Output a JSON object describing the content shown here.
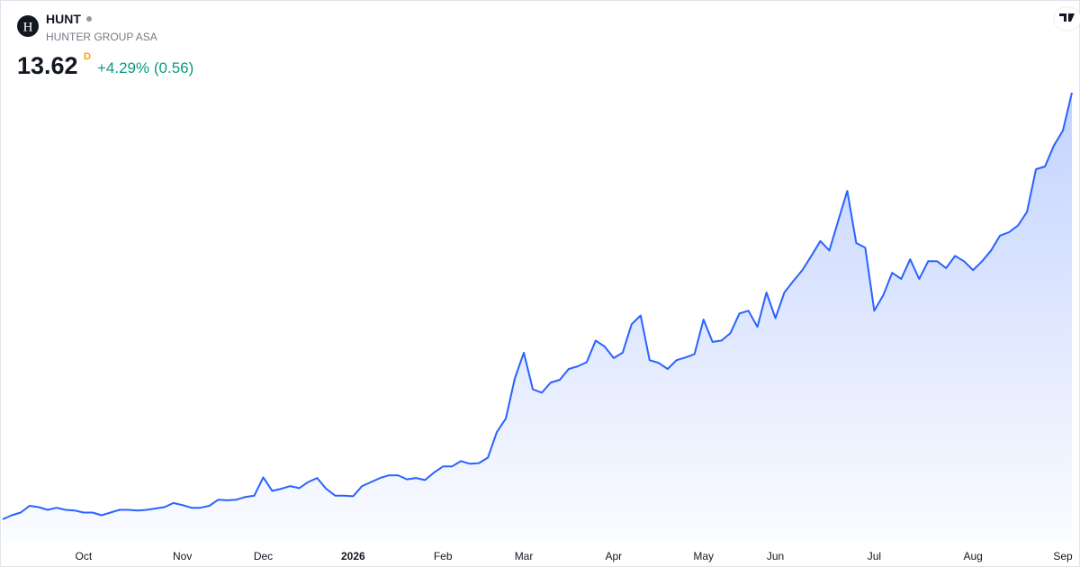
{
  "header": {
    "logo": "H",
    "symbol": "HUNT",
    "name": "HUNTER GROUP ASA",
    "price": "13.62",
    "interval": "D",
    "change": "+4.29% (0.56)"
  },
  "chart_data": {
    "type": "area",
    "color": "#2962ff",
    "categories": [
      null,
      null,
      null,
      null,
      null,
      null,
      null,
      null,
      null,
      "Oct",
      null,
      null,
      null,
      null,
      null,
      null,
      null,
      null,
      null,
      null,
      "Nov",
      null,
      null,
      null,
      null,
      null,
      null,
      null,
      null,
      "Dec",
      null,
      null,
      null,
      null,
      null,
      null,
      null,
      null,
      null,
      "2026",
      null,
      null,
      null,
      null,
      null,
      null,
      null,
      null,
      null,
      "Feb",
      null,
      null,
      null,
      null,
      null,
      null,
      null,
      null,
      "Mar",
      null,
      null,
      null,
      null,
      null,
      null,
      null,
      null,
      null,
      "Apr",
      null,
      null,
      null,
      null,
      null,
      null,
      null,
      null,
      null,
      "May",
      null,
      null,
      null,
      null,
      null,
      null,
      null,
      "Jun",
      null,
      null,
      null,
      null,
      null,
      null,
      null,
      null,
      null,
      null,
      "Jul",
      null,
      null,
      null,
      null,
      null,
      null,
      null,
      null,
      null,
      null,
      "Aug",
      null,
      null,
      null,
      null,
      null,
      null,
      null,
      null,
      null,
      "Sep",
      null
    ],
    "values": [
      7.32,
      7.38,
      7.42,
      7.52,
      7.5,
      7.46,
      7.49,
      7.46,
      7.45,
      7.42,
      7.42,
      7.38,
      7.42,
      7.46,
      7.46,
      7.45,
      7.46,
      7.48,
      7.5,
      7.56,
      7.53,
      7.49,
      7.49,
      7.52,
      7.61,
      7.6,
      7.61,
      7.65,
      7.67,
      7.94,
      7.74,
      7.77,
      7.81,
      7.78,
      7.87,
      7.93,
      7.77,
      7.67,
      7.67,
      7.66,
      7.81,
      7.87,
      7.93,
      7.97,
      7.97,
      7.91,
      7.93,
      7.9,
      8.01,
      8.1,
      8.1,
      8.18,
      8.14,
      8.15,
      8.23,
      8.61,
      8.81,
      9.4,
      9.78,
      9.24,
      9.19,
      9.34,
      9.38,
      9.54,
      9.58,
      9.64,
      9.96,
      9.87,
      9.7,
      9.78,
      10.2,
      10.33,
      9.67,
      9.63,
      9.54,
      9.67,
      9.71,
      9.76,
      10.27,
      9.94,
      9.96,
      10.07,
      10.36,
      10.4,
      10.16,
      10.67,
      10.29,
      10.67,
      10.84,
      11.0,
      11.21,
      11.43,
      11.29,
      11.73,
      12.17,
      11.4,
      11.33,
      10.4,
      10.63,
      10.96,
      10.87,
      11.16,
      10.87,
      11.13,
      11.13,
      11.03,
      11.21,
      11.13,
      11.0,
      11.13,
      11.29,
      11.51,
      11.56,
      11.66,
      11.86,
      12.49,
      12.53,
      12.84,
      13.06,
      13.62
    ]
  }
}
